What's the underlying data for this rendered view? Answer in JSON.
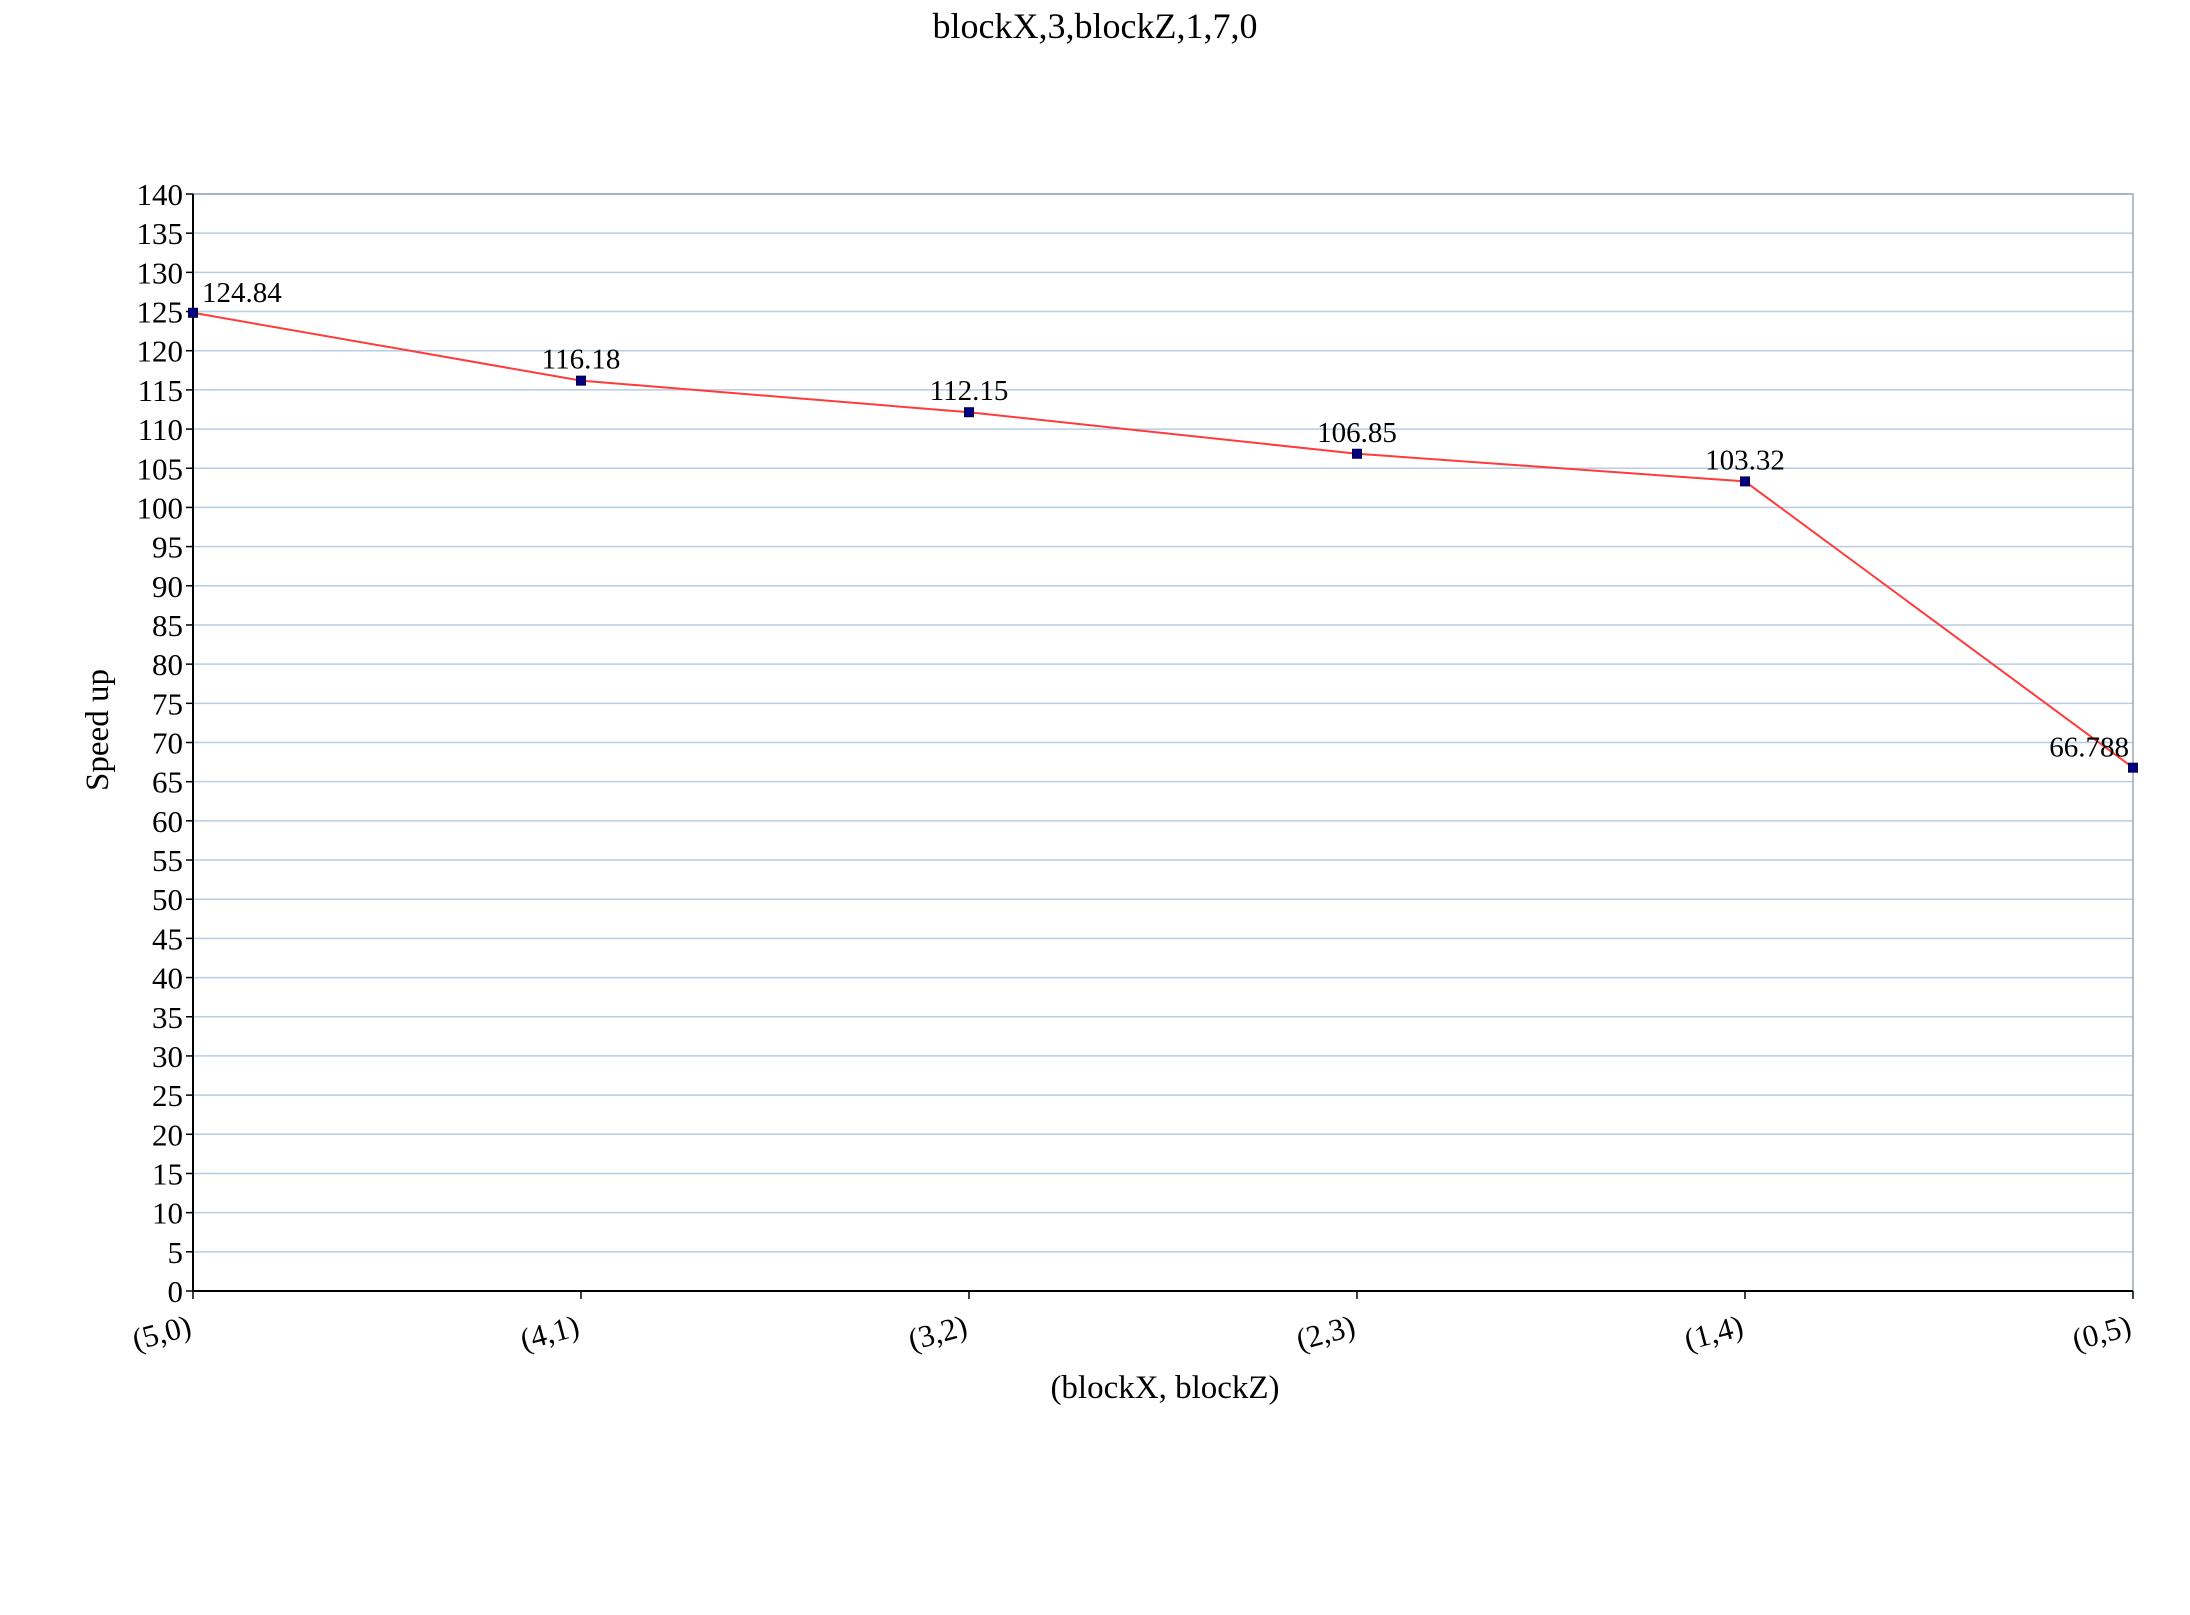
{
  "chart_data": {
    "type": "line",
    "title": "blockX,3,blockZ,1,7,0",
    "xlabel": "(blockX, blockZ)",
    "ylabel": "Speed up",
    "categories": [
      "(5,0)",
      "(4,1)",
      "(3,2)",
      "(2,3)",
      "(1,4)",
      "(0,5)"
    ],
    "series": [
      {
        "values": [
          124.84,
          116.18,
          112.15,
          106.85,
          103.32,
          66.788
        ],
        "labels": [
          "124.84",
          "116.18",
          "112.15",
          "106.85",
          "103.32",
          "66.788"
        ]
      }
    ],
    "ylim": [
      0,
      140
    ],
    "ytick_step": 5,
    "grid": true,
    "legend": "none",
    "line_color": "#ff3b3b",
    "marker_color": "#000080",
    "grid_color": "#b8cce4",
    "axis_color": "#000000"
  }
}
